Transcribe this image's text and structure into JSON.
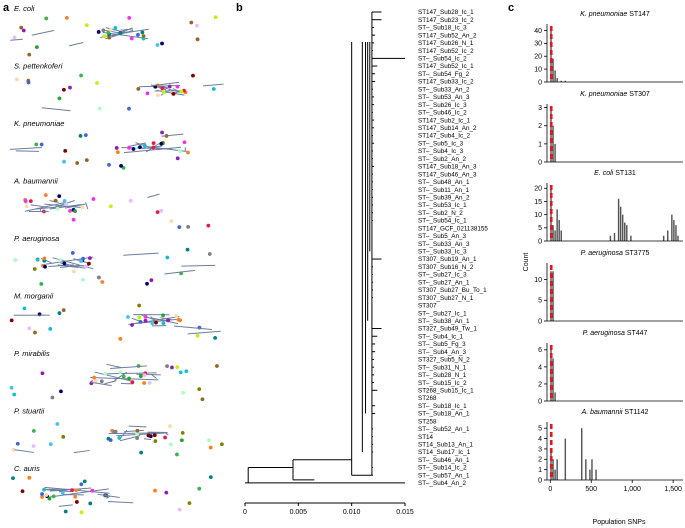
{
  "panels": {
    "a": {
      "label": "a",
      "species": [
        "E. coli",
        "S. pettenkoferi",
        "K. pneumoniae",
        "A. baumannii",
        "P. aeruginosa",
        "M. morganii",
        "P. mirabilis",
        "P. stuartii",
        "C. auris"
      ]
    },
    "b": {
      "label": "b"
    },
    "c": {
      "label": "c"
    }
  },
  "chart_data": [
    {
      "panel": "b",
      "type": "tree",
      "x_ticks": [
        "0",
        "0.005",
        "0.010",
        "0.015"
      ],
      "x_tick_values": [
        0,
        0.005,
        0.01,
        0.015
      ],
      "xlim": [
        0,
        0.015
      ],
      "leaves": [
        {
          "label": "ST147_Sub28_Ic_1",
          "d": 0.0128
        },
        {
          "label": "ST147_Sub23_Ic_2",
          "d": 0.0128
        },
        {
          "label": "ST–_Sub18_Ic_3",
          "d": 0.0121
        },
        {
          "label": "ST147_Sub52_An_2",
          "d": 0.0122
        },
        {
          "label": "ST147_Sub26_N_1",
          "d": 0.0121
        },
        {
          "label": "ST147_Sub52_Ic_2",
          "d": 0.012
        },
        {
          "label": "ST–_Sub54_Ic_2",
          "d": 0.015
        },
        {
          "label": "ST147_Sub52_Ic_1",
          "d": 0.0124
        },
        {
          "label": "ST–_Sub54_Fg_2",
          "d": 0.0122
        },
        {
          "label": "ST147_Sub33_Ic_2",
          "d": 0.0122
        },
        {
          "label": "ST–_Sub33_An_2",
          "d": 0.012
        },
        {
          "label": "ST–_Sub53_An_3",
          "d": 0.0121
        },
        {
          "label": "ST–_Sub26_Ic_3",
          "d": 0.0121
        },
        {
          "label": "ST–_Sub46_Ic_2",
          "d": 0.012
        },
        {
          "label": "ST147_Sub2_Ic_1",
          "d": 0.0121
        },
        {
          "label": "ST147_Sub14_An_2",
          "d": 0.0121
        },
        {
          "label": "ST147_Sub4_Ic_2",
          "d": 0.012
        },
        {
          "label": "ST–_Sub5_Ic_3",
          "d": 0.0121
        },
        {
          "label": "ST–_Sub4_Ic_3",
          "d": 0.012
        },
        {
          "label": "ST–_Sub2_An_2",
          "d": 0.012
        },
        {
          "label": "ST147_Sub18_An_3",
          "d": 0.0121
        },
        {
          "label": "ST147_Sub46_An_3",
          "d": 0.012
        },
        {
          "label": "ST–_Sub48_An_1",
          "d": 0.012
        },
        {
          "label": "ST–_Sub11_An_1",
          "d": 0.012
        },
        {
          "label": "ST–_Sub39_An_2",
          "d": 0.012
        },
        {
          "label": "ST–_Sub53_Ic_1",
          "d": 0.012
        },
        {
          "label": "ST–_Sub2_N_2",
          "d": 0.012
        },
        {
          "label": "ST–_Sub54_Ic_1",
          "d": 0.012
        },
        {
          "label": "ST147_GCF_021138155",
          "d": 0.0119
        },
        {
          "label": "ST–_Sub5_An_3",
          "d": 0.0119
        },
        {
          "label": "ST–_Sub33_An_3",
          "d": 0.0119
        },
        {
          "label": "ST–_Sub33_Ic_3",
          "d": 0.0119
        },
        {
          "label": "ST307_Sub19_An_1",
          "d": 0.0128
        },
        {
          "label": "ST307_Sub16_N_2",
          "d": 0.012
        },
        {
          "label": "ST–_Sub27_Ic_3",
          "d": 0.012
        },
        {
          "label": "ST–_Sub27_An_1",
          "d": 0.012
        },
        {
          "label": "ST307_Sub27_Bu_To_1",
          "d": 0.012
        },
        {
          "label": "ST307_Sub27_N_1",
          "d": 0.012
        },
        {
          "label": "ST307",
          "d": 0.0119
        },
        {
          "label": "ST–_Sub27_Ic_1",
          "d": 0.0119
        },
        {
          "label": "ST–_Sub38_An_1",
          "d": 0.0119
        },
        {
          "label": "ST327_Sub49_Tw_1",
          "d": 0.0128
        },
        {
          "label": "ST–_Sub4_Ic_1",
          "d": 0.0124
        },
        {
          "label": "ST–_Sub5_Fg_3",
          "d": 0.0122
        },
        {
          "label": "ST–_Sub4_An_3",
          "d": 0.0122
        },
        {
          "label": "ST327_Sub5_N_2",
          "d": 0.0121
        },
        {
          "label": "ST–_Sub31_N_1",
          "d": 0.0121
        },
        {
          "label": "ST–_Sub28_N_1",
          "d": 0.0121
        },
        {
          "label": "ST–_Sub15_Ic_2",
          "d": 0.0121
        },
        {
          "label": "ST268_Sub15_Ic_1",
          "d": 0.0124
        },
        {
          "label": "ST268",
          "d": 0.0119
        },
        {
          "label": "ST–_Sub18_Ic_1",
          "d": 0.0122
        },
        {
          "label": "ST–_Sub18_An_1",
          "d": 0.0122
        },
        {
          "label": "ST258",
          "d": 0.0119
        },
        {
          "label": "ST–_Sub52_An_1",
          "d": 0.012
        },
        {
          "label": "ST14",
          "d": 0.012
        },
        {
          "label": "ST14_Sub13_An_1",
          "d": 0.012
        },
        {
          "label": "ST14_Sub17_Ic_1",
          "d": 0.012
        },
        {
          "label": "ST–_Sub46_An_1",
          "d": 0.0119
        },
        {
          "label": "ST–_Sub14_Ic_2",
          "d": 0.012
        },
        {
          "label": "ST–_Sub57_An_1",
          "d": 0.012
        },
        {
          "label": "ST–_Sub4_An_2",
          "d": 0.015
        }
      ]
    },
    {
      "panel": "c",
      "type": "bar",
      "subplots": [
        {
          "species": "K. pneumoniae",
          "st": "ST147",
          "yticks": [
            0,
            10,
            20,
            30,
            40
          ],
          "ylim": [
            0,
            45
          ],
          "bins": [
            [
              0,
              42
            ],
            [
              25,
              18
            ],
            [
              50,
              9
            ],
            [
              75,
              3
            ],
            [
              125,
              1
            ],
            [
              175,
              1
            ]
          ]
        },
        {
          "species": "K. pneumoniae",
          "st": "ST307",
          "yticks": [
            0,
            1,
            2,
            3
          ],
          "ylim": [
            0,
            3.2
          ],
          "bins": [
            [
              0,
              3
            ],
            [
              25,
              2
            ],
            [
              50,
              1
            ]
          ]
        },
        {
          "species": "E. coli",
          "st": "ST131",
          "yticks": [
            0,
            5,
            10,
            15,
            20
          ],
          "ylim": [
            0,
            22
          ],
          "bins": [
            [
              0,
              20
            ],
            [
              25,
              6
            ],
            [
              50,
              4
            ],
            [
              75,
              12
            ],
            [
              100,
              8
            ],
            [
              125,
              4
            ],
            [
              725,
              2
            ],
            [
              775,
              3
            ],
            [
              825,
              16
            ],
            [
              850,
              13
            ],
            [
              875,
              10
            ],
            [
              900,
              7
            ],
            [
              925,
              6
            ],
            [
              975,
              2
            ],
            [
              1375,
              2
            ],
            [
              1425,
              4
            ],
            [
              1475,
              10
            ],
            [
              1500,
              8
            ],
            [
              1525,
              6
            ],
            [
              1550,
              2
            ]
          ]
        },
        {
          "species": "P. aeruginosa",
          "st": "ST3775",
          "yticks": [
            0,
            5,
            10
          ],
          "ylim": [
            0,
            14
          ],
          "bins": [
            [
              0,
              12
            ],
            [
              25,
              12
            ]
          ]
        },
        {
          "species": "P. aeruginosa",
          "st": "ST447",
          "yticks": [
            0,
            2,
            4,
            6
          ],
          "ylim": [
            0,
            6.8
          ],
          "bins": [
            [
              0,
              6
            ],
            [
              25,
              5
            ],
            [
              50,
              1
            ]
          ]
        },
        {
          "species": "A. baumannii",
          "st": "ST1142",
          "yticks": [
            0,
            1,
            2,
            3,
            4,
            5
          ],
          "ylim": [
            0,
            5.6
          ],
          "bins": [
            [
              0,
              3
            ],
            [
              25,
              2
            ],
            [
              50,
              1
            ],
            [
              75,
              2
            ],
            [
              175,
              4
            ],
            [
              375,
              5
            ],
            [
              425,
              2
            ],
            [
              475,
              1
            ],
            [
              500,
              2
            ],
            [
              550,
              1
            ]
          ]
        }
      ],
      "xticks": [
        "0",
        "500",
        "1,000",
        "1,500"
      ],
      "xtick_values": [
        0,
        500,
        1000,
        1500
      ],
      "xlim": [
        -40,
        1620
      ],
      "xlabel": "Population SNPs",
      "ylabel": "Count",
      "bar_color": "#555555",
      "marker_color": "#e4181c"
    }
  ]
}
